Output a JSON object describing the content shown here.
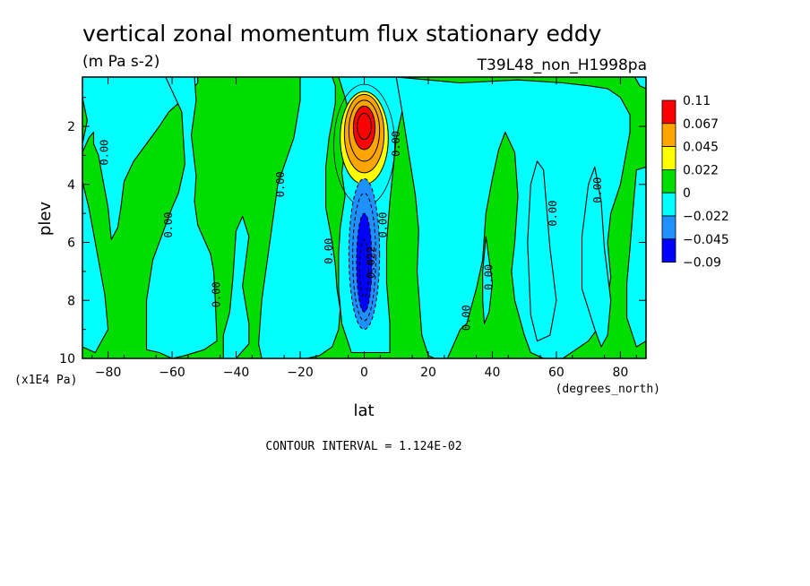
{
  "chart_data": {
    "type": "contour",
    "title": "vertical zonal momentum flux stationary eddy",
    "units": "(m Pa s-2)",
    "run_label": "T39L48_non_H1998pa",
    "xlabel": "lat",
    "xunits": "(degrees_north)",
    "ylabel": "plev",
    "yunits": "(x1E4 Pa)",
    "xlim": [
      -88,
      88
    ],
    "ylim": [
      10,
      0.3
    ],
    "x_ticks": [
      -80,
      -60,
      -40,
      -20,
      0,
      20,
      40,
      60,
      80
    ],
    "x_tick_labels": [
      "-80",
      "-60",
      "-40",
      "-20",
      "0",
      "20",
      "40",
      "60",
      "80"
    ],
    "y_ticks": [
      2,
      4,
      6,
      8,
      10
    ],
    "y_tick_labels": [
      "2",
      "4",
      "6",
      "8",
      "10"
    ],
    "contour_interval_text": "CONTOUR INTERVAL = 1.124E-02",
    "contour_label_text": "0.00",
    "contour_label_neg": "-0.022",
    "colorbar": {
      "levels": [
        "0.11",
        "0.067",
        "0.045",
        "0.022",
        "0",
        "-0.022",
        "-0.045",
        "-0.09"
      ],
      "colors": [
        "#ff0000",
        "#ffa500",
        "#ffff00",
        "#00dd00",
        "#00ffff",
        "#1e90ff",
        "#0000ff"
      ]
    },
    "features": [
      {
        "name": "positive maximum",
        "lat": 0,
        "plev": 2.1,
        "value": 0.11
      },
      {
        "name": "negative minimum",
        "lat": 0,
        "plev": 6.5,
        "value": -0.09
      }
    ],
    "colors": {
      "green": "#00dd00",
      "cyan": "#00ffff",
      "yellow": "#ffff00",
      "orange": "#ffa500",
      "red": "#ff0000",
      "blue": "#1e90ff",
      "darkblue": "#0000ff"
    }
  }
}
